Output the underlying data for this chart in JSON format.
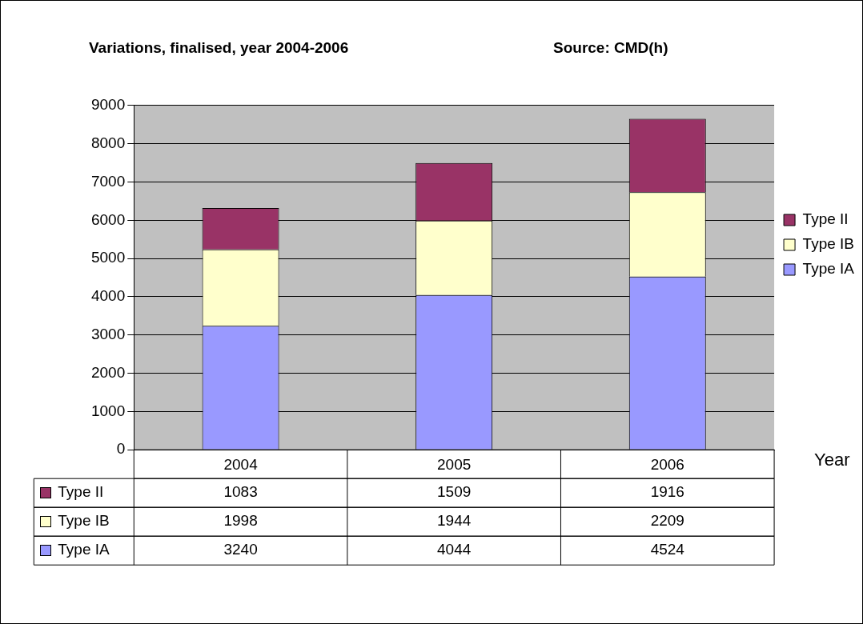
{
  "chart_data": {
    "type": "bar",
    "title": "Variations, finalised, year 2004-2006",
    "xlabel": "Year",
    "annotations": [
      "Source: CMD(h)"
    ],
    "categories": [
      "2004",
      "2005",
      "2006"
    ],
    "series": [
      {
        "name": "Type IA",
        "color": "#9999ff",
        "values": [
          3240,
          4044,
          4524
        ]
      },
      {
        "name": "Type IB",
        "color": "#ffffcc",
        "values": [
          1998,
          1944,
          2209
        ]
      },
      {
        "name": "Type II",
        "color": "#993366",
        "values": [
          1083,
          1509,
          1916
        ]
      }
    ],
    "stacked": true,
    "ylim": [
      0,
      9000
    ],
    "yticks": [
      0,
      1000,
      2000,
      3000,
      4000,
      5000,
      6000,
      7000,
      8000,
      9000
    ],
    "grid": "y",
    "legend": "right",
    "data_labels": true
  }
}
